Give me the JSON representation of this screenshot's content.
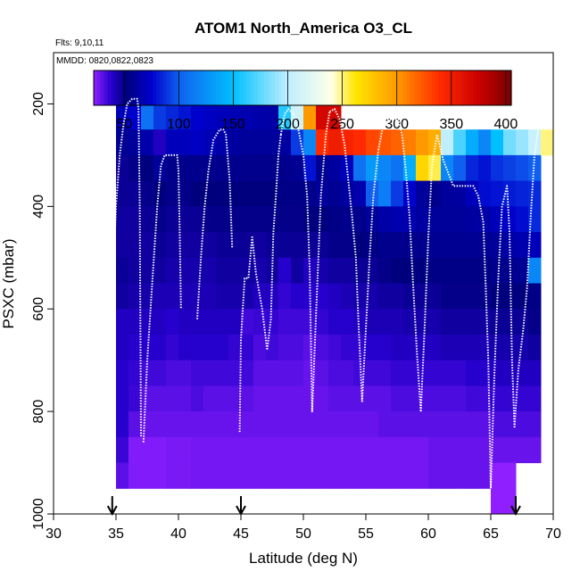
{
  "chart_data": {
    "type": "heatmap",
    "title": "ATOM1 North_America O3_CL",
    "flights_label": "Flts: 9,10,11",
    "mmdd_label": "MMDD: 0820,0822,0823",
    "xlabel": "Latitude (deg N)",
    "ylabel": "PSXC (mbar)",
    "xlim": [
      30,
      70
    ],
    "ylim": [
      1000,
      100
    ],
    "x_ticks": [
      30,
      35,
      40,
      45,
      50,
      55,
      60,
      65,
      70
    ],
    "y_ticks": [
      200,
      400,
      600,
      800,
      1000
    ],
    "colorbar": {
      "range": [
        22,
        405
      ],
      "ticks": [
        50,
        100,
        150,
        200,
        250,
        300,
        350,
        400
      ],
      "stops": [
        {
          "v": 22,
          "c": "#8f1fff"
        },
        {
          "v": 38,
          "c": "#2600cc"
        },
        {
          "v": 52,
          "c": "#00007f"
        },
        {
          "v": 75,
          "c": "#0000cc"
        },
        {
          "v": 100,
          "c": "#1060f0"
        },
        {
          "v": 150,
          "c": "#00bfff"
        },
        {
          "v": 200,
          "c": "#bfefff"
        },
        {
          "v": 240,
          "c": "#ffffe8"
        },
        {
          "v": 262,
          "c": "#ffe600"
        },
        {
          "v": 300,
          "c": "#ff9900"
        },
        {
          "v": 340,
          "c": "#ff2a00"
        },
        {
          "v": 375,
          "c": "#cc0000"
        },
        {
          "v": 405,
          "c": "#7a0000"
        }
      ]
    },
    "cells": {
      "lat_start": 35,
      "lat_step": 1,
      "p_start": 150,
      "p_step": 50,
      "columns": [
        [
          null,
          70,
          58,
          48,
          48,
          46,
          46,
          48,
          46,
          40,
          40,
          38,
          38,
          38,
          35,
          30,
          null
        ],
        [
          null,
          75,
          60,
          50,
          48,
          46,
          46,
          46,
          44,
          40,
          38,
          36,
          35,
          30,
          24,
          24,
          null
        ],
        [
          null,
          110,
          65,
          52,
          50,
          48,
          46,
          46,
          44,
          40,
          38,
          34,
          30,
          28,
          24,
          24,
          null
        ],
        [
          null,
          90,
          40,
          60,
          52,
          50,
          48,
          46,
          42,
          40,
          38,
          34,
          30,
          28,
          24,
          24,
          null
        ],
        [
          null,
          85,
          70,
          55,
          50,
          48,
          46,
          44,
          42,
          38,
          36,
          32,
          30,
          28,
          25,
          25,
          null
        ],
        [
          null,
          80,
          70,
          56,
          50,
          48,
          46,
          44,
          42,
          40,
          38,
          32,
          30,
          28,
          25,
          25,
          null
        ],
        [
          null,
          75,
          72,
          56,
          52,
          48,
          46,
          44,
          42,
          40,
          38,
          34,
          32,
          28,
          26,
          26,
          null
        ],
        [
          null,
          72,
          68,
          56,
          52,
          50,
          46,
          44,
          42,
          40,
          38,
          34,
          30,
          28,
          26,
          26,
          null
        ],
        [
          null,
          70,
          65,
          56,
          52,
          50,
          48,
          46,
          44,
          40,
          38,
          34,
          30,
          28,
          26,
          26,
          null
        ],
        [
          null,
          68,
          62,
          56,
          52,
          50,
          48,
          46,
          44,
          40,
          36,
          34,
          30,
          28,
          26,
          26,
          null
        ],
        [
          null,
          66,
          60,
          56,
          52,
          50,
          48,
          46,
          44,
          34,
          36,
          34,
          30,
          28,
          26,
          26,
          null
        ],
        [
          null,
          65,
          60,
          56,
          52,
          50,
          46,
          44,
          40,
          35,
          32,
          30,
          28,
          28,
          26,
          26,
          null
        ],
        [
          null,
          64,
          60,
          56,
          52,
          50,
          48,
          46,
          40,
          36,
          34,
          30,
          28,
          28,
          26,
          26,
          null
        ],
        [
          null,
          160,
          62,
          56,
          54,
          50,
          48,
          38,
          36,
          34,
          32,
          30,
          28,
          28,
          26,
          26,
          null
        ],
        [
          null,
          210,
          90,
          58,
          54,
          50,
          48,
          46,
          38,
          34,
          32,
          30,
          28,
          28,
          26,
          26,
          null
        ],
        [
          null,
          300,
          120,
          80,
          56,
          52,
          48,
          40,
          38,
          34,
          30,
          28,
          28,
          28,
          26,
          26,
          null
        ],
        [
          null,
          370,
          340,
          58,
          60,
          52,
          48,
          44,
          38,
          36,
          32,
          30,
          28,
          28,
          26,
          26,
          null
        ],
        [
          null,
          370,
          350,
          62,
          58,
          54,
          50,
          46,
          40,
          38,
          34,
          32,
          30,
          28,
          26,
          26,
          null
        ],
        [
          null,
          null,
          345,
          70,
          62,
          56,
          50,
          46,
          42,
          38,
          36,
          32,
          30,
          28,
          26,
          26,
          null
        ],
        [
          null,
          null,
          340,
          110,
          66,
          56,
          52,
          48,
          44,
          40,
          36,
          34,
          30,
          28,
          26,
          26,
          null
        ],
        [
          null,
          null,
          330,
          130,
          100,
          60,
          54,
          48,
          44,
          42,
          38,
          34,
          30,
          28,
          26,
          26,
          null
        ],
        [
          null,
          null,
          325,
          120,
          115,
          64,
          56,
          50,
          46,
          42,
          38,
          34,
          30,
          30,
          26,
          26,
          null
        ],
        [
          null,
          null,
          320,
          110,
          90,
          66,
          56,
          52,
          46,
          42,
          40,
          36,
          32,
          30,
          26,
          26,
          null
        ],
        [
          null,
          null,
          310,
          140,
          75,
          66,
          56,
          52,
          48,
          44,
          40,
          36,
          32,
          30,
          26,
          26,
          null
        ],
        [
          null,
          null,
          300,
          270,
          60,
          62,
          56,
          52,
          48,
          44,
          40,
          36,
          32,
          30,
          26,
          26,
          null
        ],
        [
          null,
          null,
          290,
          255,
          56,
          60,
          58,
          54,
          48,
          44,
          40,
          36,
          32,
          30,
          28,
          28,
          null
        ],
        [
          null,
          null,
          200,
          120,
          60,
          60,
          58,
          54,
          50,
          46,
          42,
          36,
          32,
          30,
          28,
          28,
          null
        ],
        [
          null,
          null,
          170,
          100,
          62,
          60,
          58,
          54,
          50,
          46,
          42,
          36,
          32,
          30,
          28,
          28,
          null
        ],
        [
          null,
          null,
          140,
          85,
          70,
          62,
          58,
          54,
          50,
          46,
          42,
          38,
          34,
          30,
          28,
          28,
          null
        ],
        [
          null,
          null,
          120,
          80,
          78,
          64,
          58,
          54,
          50,
          46,
          42,
          38,
          34,
          30,
          28,
          28,
          null
        ],
        [
          null,
          null,
          150,
          88,
          80,
          70,
          60,
          56,
          52,
          48,
          44,
          40,
          36,
          32,
          28,
          22,
          22
        ],
        [
          null,
          null,
          180,
          92,
          82,
          74,
          64,
          56,
          52,
          48,
          44,
          40,
          36,
          32,
          28,
          22,
          22
        ],
        [
          null,
          null,
          190,
          95,
          84,
          78,
          66,
          58,
          52,
          48,
          44,
          40,
          36,
          32,
          28,
          null,
          null
        ],
        [
          null,
          null,
          205,
          100,
          86,
          86,
          70,
          120,
          54,
          50,
          46,
          40,
          36,
          32,
          28,
          null,
          null
        ],
        [
          null,
          null,
          250,
          null,
          null,
          null,
          null,
          null,
          null,
          null,
          null,
          null,
          null,
          null,
          null,
          null,
          null
        ]
      ]
    },
    "profiles": [
      {
        "lat": [
          34.7,
          34.8,
          35.0,
          35.3,
          35.6,
          35.9,
          36.3,
          36.6,
          36.7,
          36.8,
          36.9,
          37.0
        ],
        "p": [
          610,
          520,
          400,
          300,
          240,
          200,
          190,
          190,
          190,
          210,
          400,
          850
        ]
      },
      {
        "lat": [
          37.2,
          37.5,
          37.9,
          38.3,
          38.6,
          38.9,
          39.4,
          39.9,
          40.0,
          40.1,
          40.2
        ],
        "p": [
          860,
          700,
          550,
          400,
          320,
          300,
          300,
          300,
          330,
          450,
          600
        ]
      },
      {
        "lat": [
          41.5,
          41.8,
          42.1,
          42.4,
          42.8,
          43.3,
          43.6,
          43.8,
          44.1,
          44.3
        ],
        "p": [
          620,
          500,
          400,
          330,
          270,
          250,
          250,
          260,
          350,
          480
        ]
      },
      {
        "lat": [
          44.9,
          45.0,
          45.3,
          45.6,
          45.9,
          46.2,
          46.7,
          47.1,
          47.4,
          47.6,
          47.8,
          48.0,
          48.2
        ],
        "p": [
          840,
          660,
          540,
          540,
          460,
          530,
          600,
          680,
          620,
          450,
          380,
          300,
          260
        ]
      },
      {
        "lat": [
          48.2,
          48.5,
          48.8,
          49.2,
          49.6,
          50.0,
          50.3,
          50.5,
          50.7,
          51.0,
          51.4,
          51.8,
          52.1
        ],
        "p": [
          260,
          220,
          210,
          220,
          250,
          300,
          380,
          520,
          800,
          620,
          380,
          260,
          215
        ]
      },
      {
        "lat": [
          52.1,
          52.5,
          52.9,
          53.3,
          53.6,
          53.9,
          54.2,
          54.4,
          54.7,
          55.0,
          55.3,
          55.6,
          56.0
        ],
        "p": [
          215,
          210,
          230,
          280,
          350,
          420,
          500,
          620,
          780,
          640,
          500,
          380,
          290
        ]
      },
      {
        "lat": [
          56.0,
          56.4,
          56.8,
          57.2,
          57.6,
          57.9,
          58.2,
          58.5,
          58.8,
          59.1,
          59.4
        ],
        "p": [
          290,
          240,
          230,
          230,
          230,
          260,
          330,
          420,
          560,
          690,
          800
        ]
      },
      {
        "lat": [
          59.4,
          59.7,
          60.0,
          60.3,
          60.7,
          61.2,
          62.0,
          63.0,
          63.6,
          64.0,
          64.4,
          64.6,
          64.8,
          65.0
        ],
        "p": [
          800,
          640,
          460,
          320,
          260,
          310,
          360,
          360,
          360,
          380,
          430,
          560,
          700,
          950
        ]
      },
      {
        "lat": [
          65.0,
          65.3,
          65.6,
          65.9,
          66.3,
          66.5,
          66.7,
          66.9,
          67.2,
          67.6,
          67.9,
          68.2,
          68.5,
          68.8,
          69.0,
          69.5,
          70.0
        ],
        "p": [
          950,
          720,
          540,
          400,
          360,
          450,
          700,
          830,
          720,
          640,
          560,
          420,
          300,
          250,
          230,
          220,
          215
        ]
      }
    ],
    "markers": [
      34.7,
      45.0,
      67.0
    ]
  }
}
